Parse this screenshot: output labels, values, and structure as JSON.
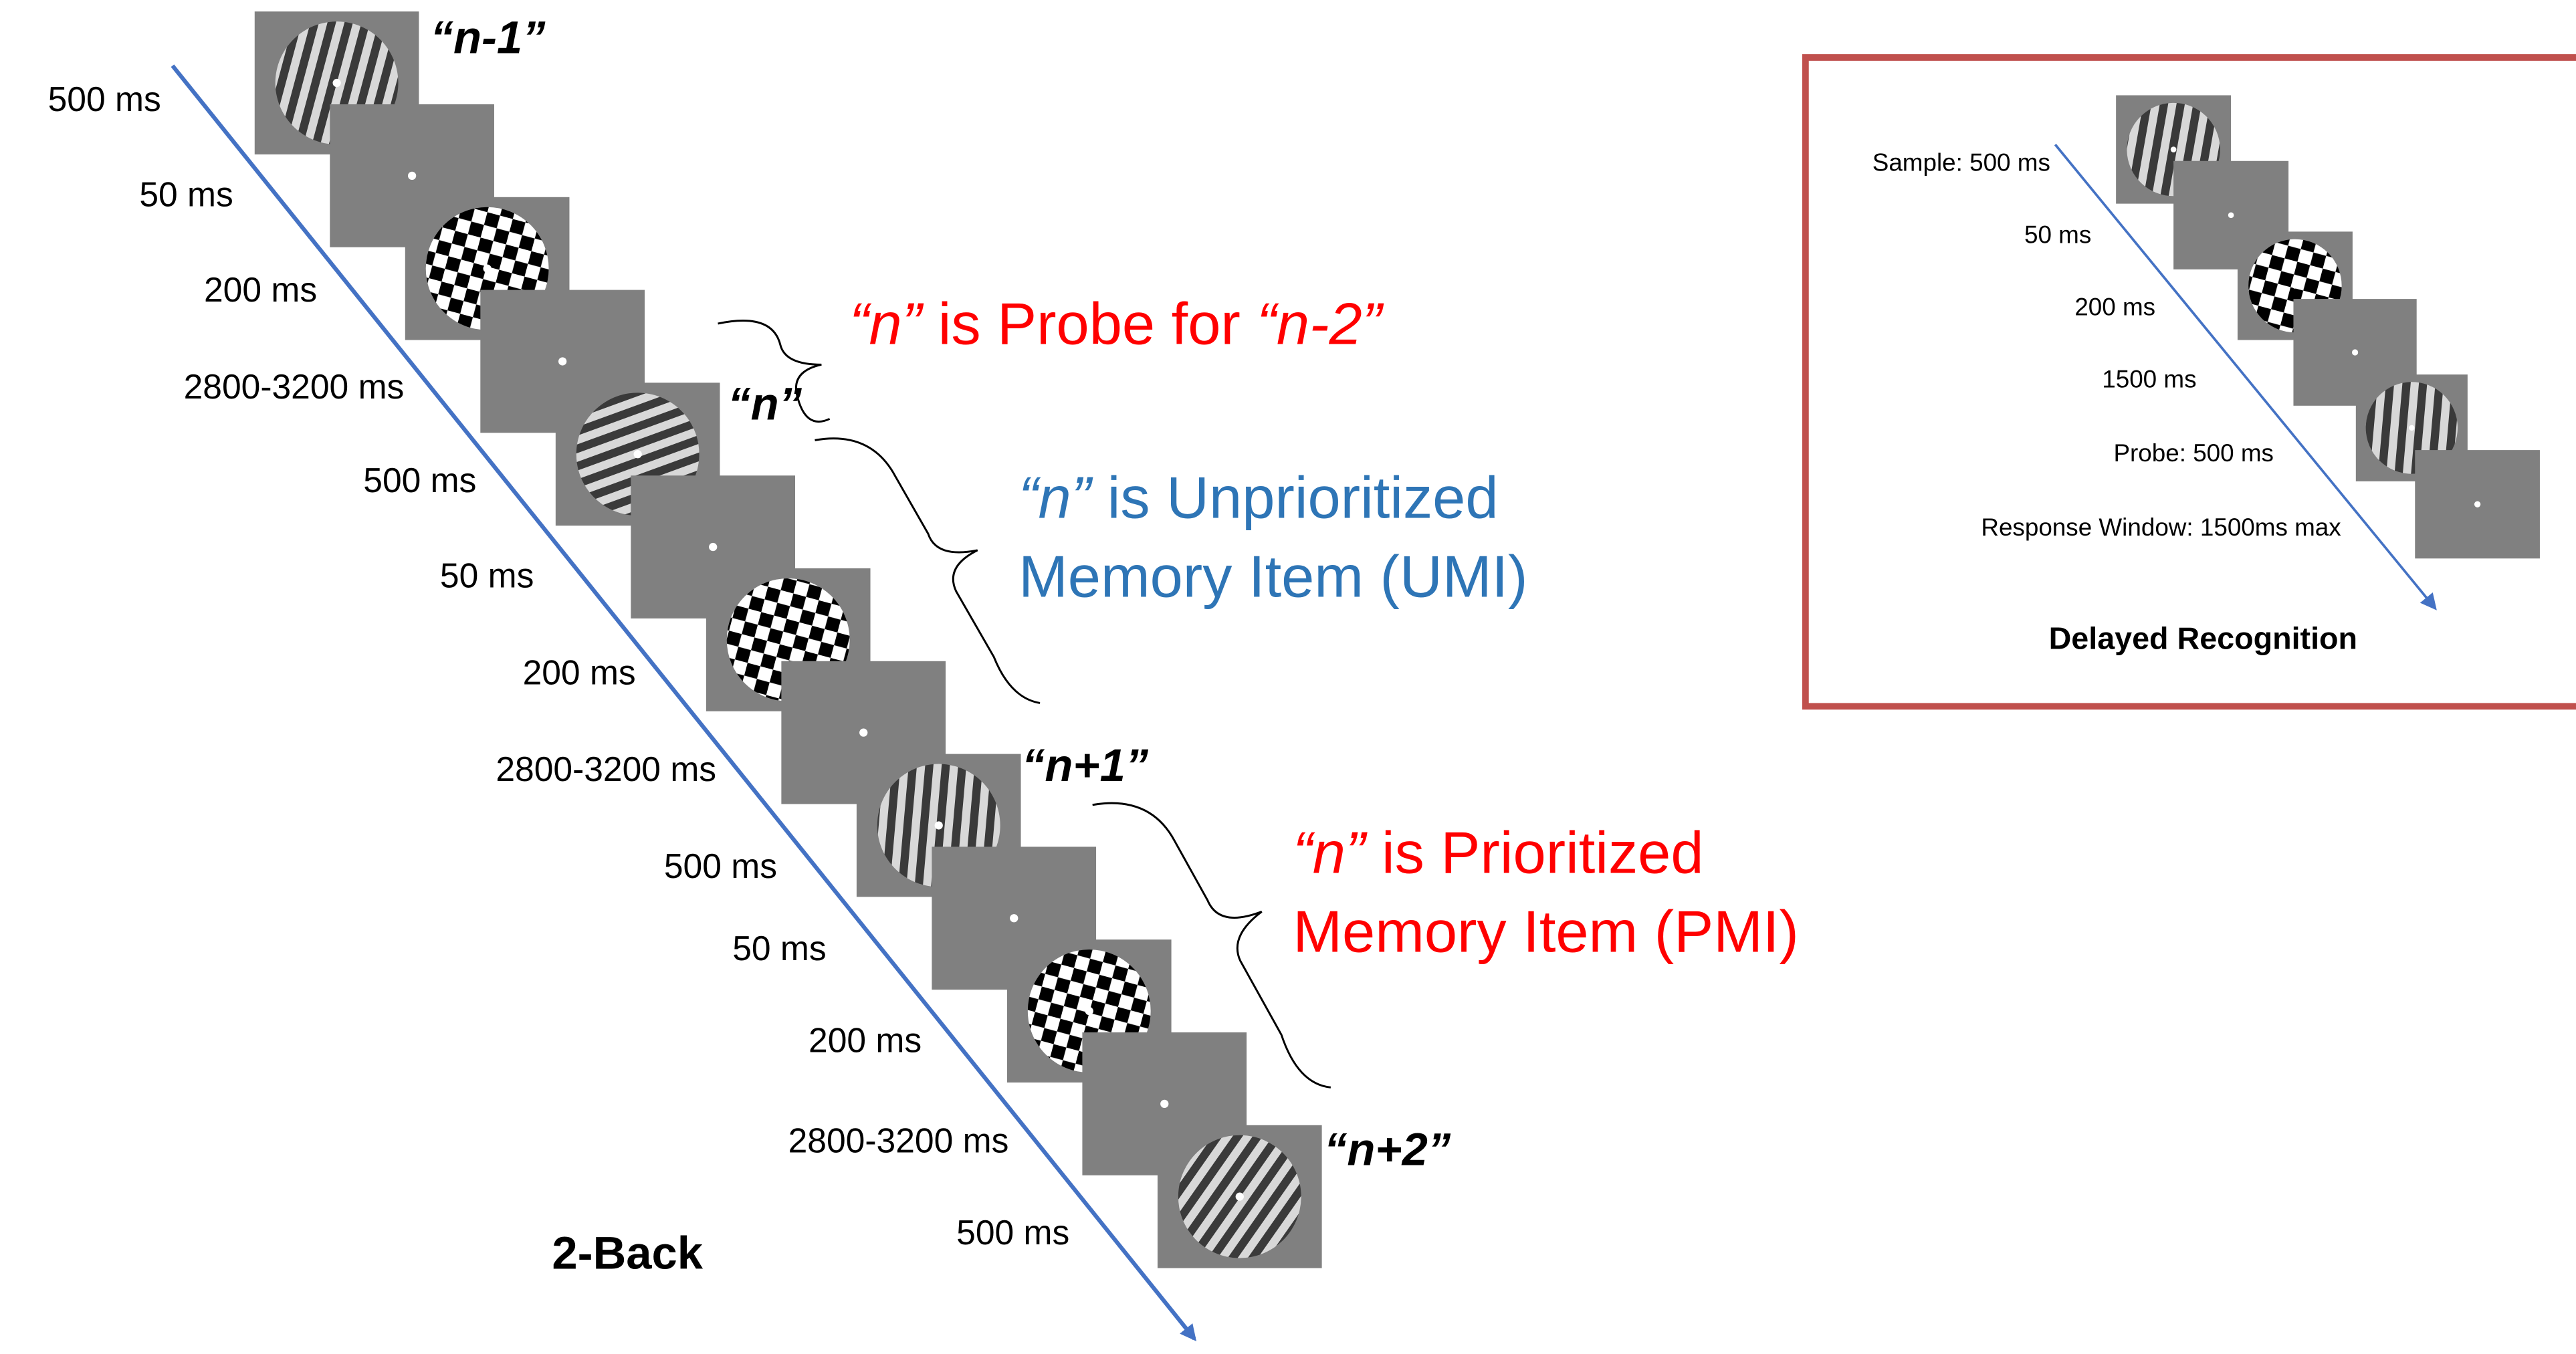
{
  "two_back": {
    "title": "2-Back",
    "timings": [
      "500 ms",
      "50 ms",
      "200 ms",
      "2800-3200 ms",
      "500 ms",
      "50 ms",
      "200 ms",
      "2800-3200 ms",
      "500 ms",
      "50 ms",
      "200 ms",
      "2800-3200 ms",
      "500 ms"
    ],
    "item_labels": [
      "“n-1”",
      "“n”",
      "“n+1”",
      "“n+2”"
    ],
    "annotations": [
      {
        "lines": [
          [
            "“n”",
            " is Probe for ",
            "“n-2”"
          ]
        ]
      },
      {
        "lines": [
          [
            "“n”",
            " is Unprioritized"
          ],
          [
            "Memory Item (UMI)"
          ]
        ]
      },
      {
        "lines": [
          [
            "“n”",
            " is Prioritized"
          ],
          [
            "Memory Item (PMI)"
          ]
        ]
      }
    ]
  },
  "delayed_recognition": {
    "title": "Delayed Recognition",
    "timings": [
      "Sample: 500 ms",
      "50 ms",
      "200 ms",
      "1500 ms",
      "Probe: 500 ms",
      "Response Window: 1500ms max"
    ]
  }
}
